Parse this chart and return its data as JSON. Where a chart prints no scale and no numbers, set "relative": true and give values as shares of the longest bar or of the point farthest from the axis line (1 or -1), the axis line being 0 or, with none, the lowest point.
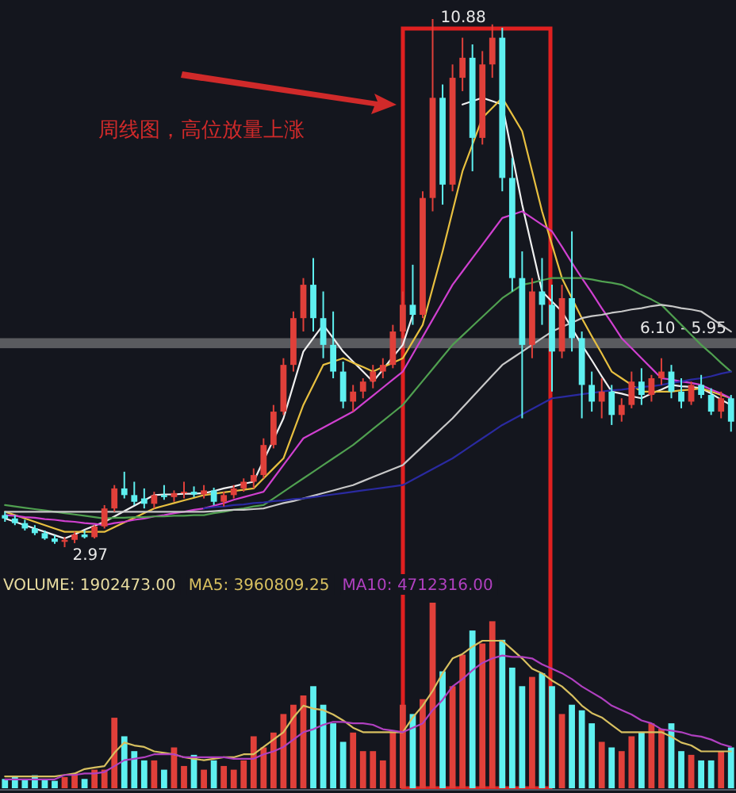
{
  "chart_data": [
    {
      "type": "candlestick",
      "title": "周线图，高位放量上涨",
      "categories": [
        null,
        null,
        null,
        null,
        null,
        null,
        null,
        null,
        null,
        null,
        null,
        null,
        null,
        null,
        null,
        null,
        null,
        null,
        null,
        null,
        null,
        null,
        null,
        null,
        null,
        null,
        null,
        null,
        null,
        null,
        null,
        null,
        null,
        null,
        null,
        null,
        null,
        null,
        null,
        null,
        null,
        null,
        null,
        null,
        null,
        null,
        null,
        null,
        null,
        null,
        null,
        null,
        null,
        null,
        null,
        null,
        null,
        null,
        null,
        null,
        null,
        null,
        null,
        null,
        null,
        null,
        null,
        null,
        null,
        null,
        null,
        null,
        null,
        null
      ],
      "ohlc": [
        [
          3.45,
          3.5,
          3.35,
          3.4
        ],
        [
          3.4,
          3.45,
          3.3,
          3.33
        ],
        [
          3.33,
          3.38,
          3.22,
          3.25
        ],
        [
          3.25,
          3.3,
          3.15,
          3.18
        ],
        [
          3.18,
          3.22,
          3.08,
          3.1
        ],
        [
          3.1,
          3.15,
          3.02,
          3.05
        ],
        [
          3.05,
          3.12,
          2.97,
          3.08
        ],
        [
          3.08,
          3.2,
          3.03,
          3.16
        ],
        [
          3.16,
          3.22,
          3.1,
          3.12
        ],
        [
          3.12,
          3.3,
          3.1,
          3.28
        ],
        [
          3.28,
          3.6,
          3.25,
          3.55
        ],
        [
          3.55,
          3.9,
          3.5,
          3.85
        ],
        [
          3.85,
          4.1,
          3.7,
          3.75
        ],
        [
          3.75,
          3.95,
          3.6,
          3.65
        ],
        [
          3.7,
          3.85,
          3.55,
          3.62
        ],
        [
          3.62,
          3.8,
          3.55,
          3.75
        ],
        [
          3.75,
          3.9,
          3.68,
          3.72
        ],
        [
          3.72,
          3.82,
          3.65,
          3.78
        ],
        [
          3.78,
          3.95,
          3.7,
          3.8
        ],
        [
          3.8,
          3.88,
          3.72,
          3.76
        ],
        [
          3.76,
          3.9,
          3.7,
          3.82
        ],
        [
          3.82,
          3.86,
          3.6,
          3.65
        ],
        [
          3.65,
          3.8,
          3.58,
          3.75
        ],
        [
          3.75,
          3.9,
          3.7,
          3.85
        ],
        [
          3.85,
          4.0,
          3.8,
          3.95
        ],
        [
          3.95,
          4.15,
          3.85,
          4.05
        ],
        [
          4.05,
          4.6,
          4.0,
          4.5
        ],
        [
          4.5,
          5.1,
          4.45,
          5.0
        ],
        [
          5.0,
          5.8,
          4.95,
          5.7
        ],
        [
          5.7,
          6.5,
          5.6,
          6.4
        ],
        [
          6.4,
          7.0,
          6.2,
          6.9
        ],
        [
          6.9,
          7.3,
          6.2,
          6.4
        ],
        [
          6.4,
          6.8,
          5.8,
          6.0
        ],
        [
          6.0,
          6.5,
          5.5,
          5.6
        ],
        [
          5.6,
          5.75,
          5.05,
          5.15
        ],
        [
          5.15,
          5.4,
          5.0,
          5.3
        ],
        [
          5.3,
          5.5,
          5.2,
          5.45
        ],
        [
          5.45,
          5.7,
          5.35,
          5.6
        ],
        [
          5.6,
          5.8,
          5.5,
          5.7
        ],
        [
          5.7,
          6.3,
          5.65,
          6.2
        ],
        [
          6.2,
          6.8,
          6.1,
          6.6
        ],
        [
          6.6,
          7.2,
          6.3,
          6.45
        ],
        [
          6.45,
          8.3,
          6.4,
          8.2
        ],
        [
          8.2,
          10.88,
          8.0,
          9.7
        ],
        [
          9.7,
          9.9,
          8.1,
          8.4
        ],
        [
          8.4,
          10.2,
          8.3,
          10.0
        ],
        [
          10.0,
          10.6,
          9.8,
          10.3
        ],
        [
          10.3,
          10.5,
          8.6,
          9.1
        ],
        [
          9.1,
          10.4,
          9.0,
          10.2
        ],
        [
          10.2,
          10.8,
          10.0,
          10.6
        ],
        [
          10.6,
          10.75,
          8.3,
          8.5
        ],
        [
          8.5,
          8.8,
          6.8,
          7.0
        ],
        [
          7.0,
          7.4,
          4.9,
          6.0
        ],
        [
          6.0,
          7.0,
          5.8,
          6.8
        ],
        [
          6.8,
          7.3,
          6.3,
          6.6
        ],
        [
          6.6,
          6.9,
          5.3,
          5.9
        ],
        [
          5.9,
          6.9,
          5.8,
          6.7
        ],
        [
          6.7,
          7.7,
          5.9,
          6.1
        ],
        [
          6.1,
          6.2,
          4.9,
          5.4
        ],
        [
          5.4,
          5.6,
          5.0,
          5.15
        ],
        [
          5.15,
          5.5,
          4.9,
          5.3
        ],
        [
          5.3,
          5.4,
          4.8,
          4.95
        ],
        [
          4.95,
          5.2,
          4.85,
          5.1
        ],
        [
          5.1,
          5.6,
          5.05,
          5.45
        ],
        [
          5.45,
          5.65,
          5.1,
          5.25
        ],
        [
          5.25,
          5.55,
          5.15,
          5.5
        ],
        [
          5.5,
          5.8,
          5.4,
          5.6
        ],
        [
          5.6,
          5.7,
          5.2,
          5.3
        ],
        [
          5.3,
          5.5,
          5.05,
          5.15
        ],
        [
          5.15,
          5.45,
          5.1,
          5.4
        ],
        [
          5.4,
          5.55,
          5.2,
          5.25
        ],
        [
          5.25,
          5.35,
          4.95,
          5.0
        ],
        [
          5.0,
          5.3,
          4.9,
          5.2
        ],
        [
          5.2,
          5.25,
          4.7,
          4.85
        ]
      ],
      "series": [
        {
          "type": "line",
          "color": "#f0f0f0",
          "values": [
            3.4,
            3.35,
            3.3,
            3.25,
            3.2,
            3.15,
            3.1,
            3.16,
            3.23,
            3.29,
            3.35,
            3.43,
            3.51,
            3.59,
            3.67,
            3.75,
            3.76,
            3.76,
            3.77,
            3.77,
            3.78,
            3.81,
            3.85,
            3.88,
            3.92,
            3.95,
            4.27,
            4.58,
            4.9,
            5.4,
            5.9,
            6.1,
            6.3,
            6.1,
            5.9,
            5.75,
            5.6,
            5.45,
            5.63,
            5.82,
            6.0,
            6.45,
            null,
            null,
            null,
            null,
            9.6,
            9.65,
            9.7,
            9.65,
            9.6,
            8.85,
            8.1,
            7.45,
            6.8,
            6.65,
            6.5,
            6.25,
            6.0,
            5.77,
            5.53,
            5.3,
            5.27,
            5.23,
            5.2,
            5.27,
            5.33,
            5.4,
            5.38,
            5.37,
            5.35,
            5.27,
            5.18,
            5.1
          ]
        },
        {
          "type": "line",
          "color": "#e8c040",
          "values": [
            3.5,
            3.45,
            3.4,
            3.35,
            3.3,
            3.25,
            3.2,
            3.2,
            3.2,
            3.2,
            3.2,
            3.27,
            3.34,
            3.41,
            3.48,
            3.55,
            3.59,
            3.63,
            3.67,
            3.71,
            3.75,
            3.77,
            3.79,
            3.81,
            3.83,
            3.85,
            4.0,
            4.15,
            4.3,
            4.7,
            5.1,
            5.4,
            5.7,
            5.75,
            5.8,
            5.73,
            5.67,
            5.6,
            5.67,
            5.73,
            5.8,
            6.05,
            6.3,
            6.85,
            7.4,
            8.0,
            8.6,
            9.0,
            9.4,
            9.55,
            9.7,
            9.45,
            9.2,
            8.6,
            8.0,
            7.5,
            7.0,
            6.7,
            6.4,
            6.13,
            5.87,
            5.6,
            5.5,
            5.4,
            5.3,
            5.3,
            5.3,
            5.3,
            5.32,
            5.33,
            5.35,
            5.3,
            5.25,
            5.2
          ]
        },
        {
          "type": "line",
          "color": "#d040d0",
          "values": [
            3.45,
            3.44,
            3.42,
            3.41,
            3.39,
            3.38,
            3.36,
            3.35,
            3.33,
            3.32,
            3.3,
            3.33,
            3.35,
            3.38,
            3.4,
            3.43,
            3.45,
            3.48,
            3.5,
            3.53,
            3.55,
            3.59,
            3.63,
            3.68,
            3.72,
            3.76,
            3.8,
            4.0,
            4.2,
            4.4,
            4.6,
            4.68,
            4.76,
            4.84,
            4.92,
            5.0,
            5.12,
            5.24,
            5.36,
            5.48,
            5.6,
            5.86,
            6.12,
            6.38,
            6.64,
            6.9,
            7.1,
            7.3,
            7.5,
            7.7,
            7.9,
            7.95,
            8.0,
            7.9,
            7.8,
            7.7,
            7.47,
            7.23,
            7.0,
            6.78,
            6.55,
            6.33,
            6.1,
            5.95,
            5.8,
            5.65,
            5.5,
            5.48,
            5.45,
            5.43,
            5.4,
            5.33,
            5.27,
            5.2
          ]
        },
        {
          "type": "line",
          "color": "#50a050",
          "values": [
            3.6,
            3.58,
            3.56,
            3.54,
            3.52,
            3.5,
            3.48,
            3.46,
            3.44,
            3.42,
            3.4,
            3.41,
            3.41,
            3.42,
            3.42,
            3.43,
            3.43,
            3.44,
            3.44,
            3.45,
            3.45,
            3.48,
            3.5,
            3.53,
            3.55,
            3.58,
            3.6,
            3.7,
            3.8,
            3.9,
            4.0,
            4.1,
            4.2,
            4.3,
            4.4,
            4.5,
            4.62,
            4.74,
            4.86,
            4.98,
            5.1,
            5.28,
            5.46,
            5.64,
            5.82,
            6.0,
            6.14,
            6.28,
            6.42,
            6.56,
            6.7,
            6.8,
            6.9,
            6.93,
            6.97,
            7.0,
            7.0,
            7.0,
            7.0,
            6.98,
            6.95,
            6.93,
            6.9,
            6.83,
            6.75,
            6.68,
            6.6,
            6.45,
            6.3,
            6.15,
            6.0,
            5.87,
            5.73,
            5.6
          ]
        },
        {
          "type": "line",
          "color": "#c8c8c8",
          "values": [
            3.5,
            3.5,
            3.5,
            3.5,
            3.5,
            3.5,
            3.5,
            3.5,
            3.5,
            3.5,
            3.5,
            3.5,
            3.5,
            3.5,
            3.5,
            3.5,
            3.5,
            3.5,
            3.5,
            3.5,
            3.5,
            3.51,
            3.52,
            3.53,
            3.53,
            3.54,
            3.55,
            3.59,
            3.63,
            3.66,
            3.7,
            3.74,
            3.78,
            3.82,
            3.86,
            3.9,
            3.96,
            4.02,
            4.08,
            4.14,
            4.2,
            4.34,
            4.48,
            4.62,
            4.76,
            4.9,
            5.06,
            5.22,
            5.38,
            5.54,
            5.7,
            5.8,
            5.9,
            6.0,
            6.1,
            6.2,
            6.27,
            6.33,
            6.4,
            6.43,
            6.45,
            6.48,
            6.5,
            6.53,
            6.55,
            6.58,
            6.6,
            6.58,
            6.55,
            6.53,
            6.5,
            6.4,
            6.3,
            6.2
          ]
        },
        {
          "type": "line",
          "color": "#2a2aa0",
          "values": [
            null,
            null,
            null,
            null,
            null,
            null,
            null,
            null,
            null,
            null,
            null,
            null,
            null,
            null,
            null,
            null,
            null,
            null,
            null,
            null,
            3.55,
            3.57,
            3.58,
            3.6,
            3.61,
            3.63,
            3.64,
            3.66,
            3.67,
            3.69,
            3.7,
            3.72,
            3.74,
            3.76,
            3.78,
            3.8,
            3.82,
            3.84,
            3.86,
            3.88,
            3.9,
            3.98,
            4.06,
            4.14,
            4.22,
            4.3,
            4.4,
            4.5,
            4.6,
            4.7,
            4.8,
            4.88,
            4.96,
            5.04,
            5.12,
            5.2,
            5.22,
            5.24,
            5.26,
            5.28,
            5.3,
            5.32,
            5.33,
            5.35,
            5.37,
            5.38,
            5.4,
            5.43,
            5.45,
            5.48,
            5.5,
            5.53,
            5.57,
            5.6
          ]
        }
      ],
      "bands": [
        {
          "axis": "y",
          "from": 5.95,
          "to": 6.1,
          "label": "6.10 - 5.95",
          "color": "#a0a0a0"
        }
      ],
      "annotations": [
        "10.88",
        "2.97"
      ]
    },
    {
      "type": "bar",
      "relative": true,
      "categories": [
        null,
        null,
        null,
        null,
        null,
        null,
        null,
        null,
        null,
        null,
        null,
        null,
        null,
        null,
        null,
        null,
        null,
        null,
        null,
        null,
        null,
        null,
        null,
        null,
        null,
        null,
        null,
        null,
        null,
        null,
        null,
        null,
        null,
        null,
        null,
        null,
        null,
        null,
        null,
        null,
        null,
        null,
        null,
        null,
        null,
        null,
        null,
        null,
        null,
        null,
        null,
        null,
        null,
        null,
        null,
        null,
        null,
        null,
        null,
        null,
        null,
        null,
        null,
        null,
        null,
        null,
        null,
        null,
        null,
        null,
        null,
        null,
        null,
        null
      ],
      "series": [
        {
          "type": "bar",
          "name": "VOLUME: 1902473.00",
          "color": "#e8dca0",
          "colors": [
            "#5ef0f0",
            "#5ef0f0",
            "#5ef0f0",
            "#5ef0f0",
            "#5ef0f0",
            "#5ef0f0",
            "#e0403a",
            "#e0403a",
            "#5ef0f0",
            "#e0403a",
            "#e0403a",
            "#e0403a",
            "#5ef0f0",
            "#5ef0f0",
            "#5ef0f0",
            "#e0403a",
            "#5ef0f0",
            "#e0403a",
            "#e0403a",
            "#5ef0f0",
            "#e0403a",
            "#5ef0f0",
            "#e0403a",
            "#e0403a",
            "#e0403a",
            "#e0403a",
            "#e0403a",
            "#e0403a",
            "#e0403a",
            "#e0403a",
            "#e0403a",
            "#5ef0f0",
            "#5ef0f0",
            "#5ef0f0",
            "#5ef0f0",
            "#e0403a",
            "#e0403a",
            "#e0403a",
            "#e0403a",
            "#e0403a",
            "#e0403a",
            "#5ef0f0",
            "#e0403a",
            "#e0403a",
            "#5ef0f0",
            "#e0403a",
            "#e0403a",
            "#5ef0f0",
            "#e0403a",
            "#e0403a",
            "#5ef0f0",
            "#5ef0f0",
            "#5ef0f0",
            "#e0403a",
            "#5ef0f0",
            "#5ef0f0",
            "#e0403a",
            "#5ef0f0",
            "#5ef0f0",
            "#5ef0f0",
            "#e0403a",
            "#5ef0f0",
            "#e0403a",
            "#e0403a",
            "#5ef0f0",
            "#e0403a",
            "#e0403a",
            "#5ef0f0",
            "#5ef0f0",
            "#e0403a",
            "#5ef0f0",
            "#5ef0f0",
            "#e0403a",
            "#5ef0f0"
          ],
          "values": [
            0.05,
            0.06,
            0.05,
            0.07,
            0.05,
            0.04,
            0.06,
            0.08,
            0.05,
            0.1,
            0.1,
            0.38,
            0.28,
            0.2,
            0.15,
            0.15,
            0.1,
            0.22,
            0.12,
            0.18,
            0.1,
            0.15,
            0.12,
            0.1,
            0.15,
            0.28,
            0.22,
            0.3,
            0.4,
            0.45,
            0.5,
            0.55,
            0.45,
            0.35,
            0.25,
            0.3,
            0.2,
            0.2,
            0.15,
            0.3,
            0.45,
            0.4,
            0.48,
            1.0,
            0.63,
            0.55,
            0.72,
            0.85,
            0.78,
            0.9,
            0.8,
            0.65,
            0.55,
            0.6,
            0.62,
            0.55,
            0.4,
            0.45,
            0.42,
            0.35,
            0.25,
            0.22,
            0.2,
            0.28,
            0.3,
            0.35,
            0.32,
            0.35,
            0.2,
            0.18,
            0.15,
            0.15,
            0.2,
            0.22
          ]
        }
      ]
    },
    {
      "type": "line",
      "relative": true,
      "categories": [
        null,
        null,
        null,
        null,
        null,
        null,
        null,
        null,
        null,
        null,
        null,
        null,
        null,
        null,
        null,
        null,
        null,
        null,
        null,
        null,
        null,
        null,
        null,
        null,
        null,
        null,
        null,
        null,
        null,
        null,
        null,
        null,
        null,
        null,
        null,
        null,
        null,
        null,
        null,
        null,
        null,
        null,
        null,
        null,
        null,
        null,
        null,
        null,
        null,
        null,
        null,
        null,
        null,
        null,
        null,
        null,
        null,
        null,
        null,
        null,
        null,
        null,
        null,
        null,
        null,
        null,
        null,
        null,
        null,
        null,
        null,
        null,
        null,
        null
      ],
      "series": [
        {
          "name": "MA5: 3960809.25",
          "color": "#d8c060",
          "values": [
            0.08,
            0.08,
            0.08,
            0.08,
            0.08,
            0.08,
            0.09,
            0.1,
            0.13,
            0.14,
            0.15,
            0.24,
            0.31,
            0.29,
            0.28,
            0.25,
            0.24,
            0.23,
            0.21,
            0.2,
            0.19,
            0.2,
            0.21,
            0.21,
            0.23,
            0.23,
            0.28,
            0.33,
            0.38,
            0.48,
            0.56,
            0.54,
            0.53,
            0.5,
            0.46,
            0.41,
            0.38,
            0.38,
            0.38,
            0.38,
            0.38,
            0.48,
            0.56,
            0.66,
            0.78,
            0.88,
            0.91,
            0.96,
            1,
            1,
            1,
            0.94,
            0.88,
            0.81,
            0.78,
            0.73,
            0.69,
            0.63,
            0.56,
            0.51,
            0.48,
            0.43,
            0.38,
            0.38,
            0.38,
            0.38,
            0.38,
            0.35,
            0.31,
            0.29,
            0.25,
            0.25,
            0.25,
            0.25
          ]
        },
        {
          "name": "MA10: 4712316.00",
          "color": "#b040c0",
          "values": [
            0.06,
            0.06,
            0.06,
            0.06,
            0.06,
            0.06,
            0.09,
            0.09,
            0.1,
            0.1,
            0.11,
            0.15,
            0.19,
            0.2,
            0.21,
            0.23,
            0.23,
            0.23,
            0.21,
            0.21,
            0.21,
            0.21,
            0.21,
            0.2,
            0.2,
            0.2,
            0.23,
            0.25,
            0.28,
            0.33,
            0.38,
            0.4,
            0.43,
            0.45,
            0.45,
            0.44,
            0.44,
            0.43,
            0.4,
            0.39,
            0.38,
            0.41,
            0.44,
            0.53,
            0.6,
            0.69,
            0.74,
            0.8,
            0.85,
            0.88,
            0.9,
            0.89,
            0.89,
            0.88,
            0.84,
            0.81,
            0.78,
            0.74,
            0.69,
            0.65,
            0.61,
            0.56,
            0.53,
            0.5,
            0.46,
            0.44,
            0.4,
            0.39,
            0.38,
            0.36,
            0.35,
            0.33,
            0.3,
            0.28
          ]
        }
      ]
    }
  ]
}
